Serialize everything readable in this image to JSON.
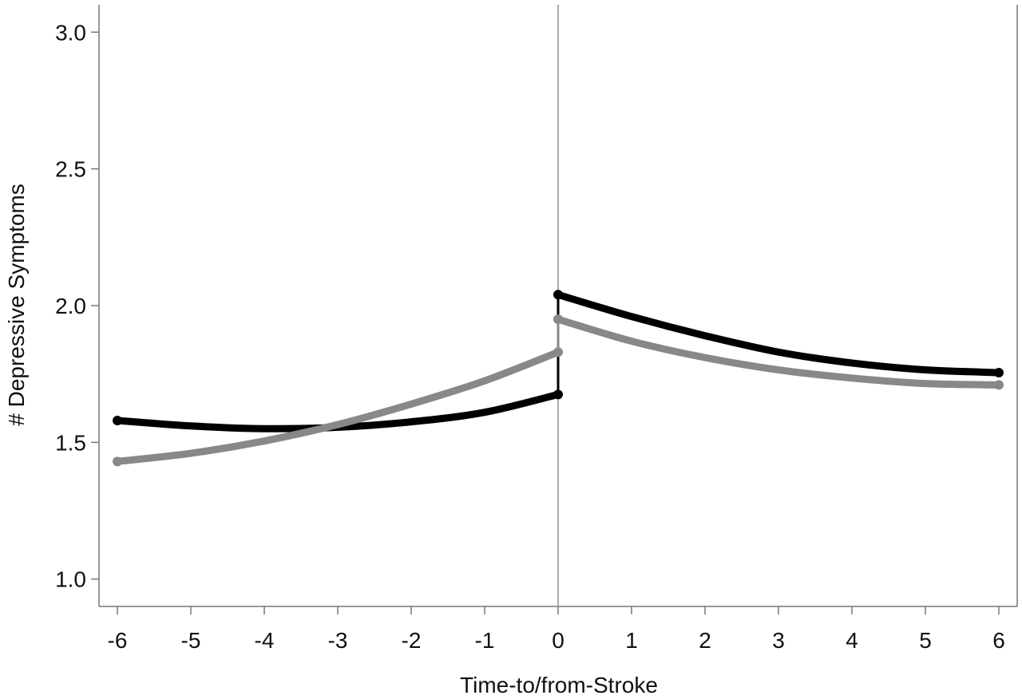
{
  "chart_data": {
    "type": "line",
    "title": "",
    "xlabel": "Time-to/from-Stroke",
    "ylabel": "# Depressive Symptoms",
    "xlim": [
      -6.25,
      6.25
    ],
    "ylim": [
      0.9,
      3.1
    ],
    "xticks": [
      "-6",
      "-5",
      "-4",
      "-3",
      "-2",
      "-1",
      "0",
      "1",
      "2",
      "3",
      "4",
      "5",
      "6"
    ],
    "yticks": [
      "1.0",
      "1.5",
      "2.0",
      "2.5",
      "3.0"
    ],
    "reference_line_x": 0,
    "grid": false,
    "legend": "none",
    "series": [
      {
        "color": "#000000",
        "pre": {
          "x": [
            -6,
            -5,
            -4,
            -3,
            -2,
            -1,
            0
          ],
          "y": [
            1.58,
            1.56,
            1.55,
            1.555,
            1.575,
            1.61,
            1.675
          ]
        },
        "post": {
          "x": [
            0,
            1,
            2,
            3,
            4,
            5,
            6
          ],
          "y": [
            2.04,
            1.96,
            1.89,
            1.83,
            1.79,
            1.765,
            1.755
          ]
        }
      },
      {
        "color": "#888888",
        "pre": {
          "x": [
            -6,
            -5,
            -4,
            -3,
            -2,
            -1,
            0
          ],
          "y": [
            1.43,
            1.46,
            1.505,
            1.565,
            1.64,
            1.725,
            1.83
          ]
        },
        "post": {
          "x": [
            0,
            1,
            2,
            3,
            4,
            5,
            6
          ],
          "y": [
            1.95,
            1.87,
            1.81,
            1.765,
            1.735,
            1.715,
            1.71
          ]
        }
      }
    ]
  }
}
